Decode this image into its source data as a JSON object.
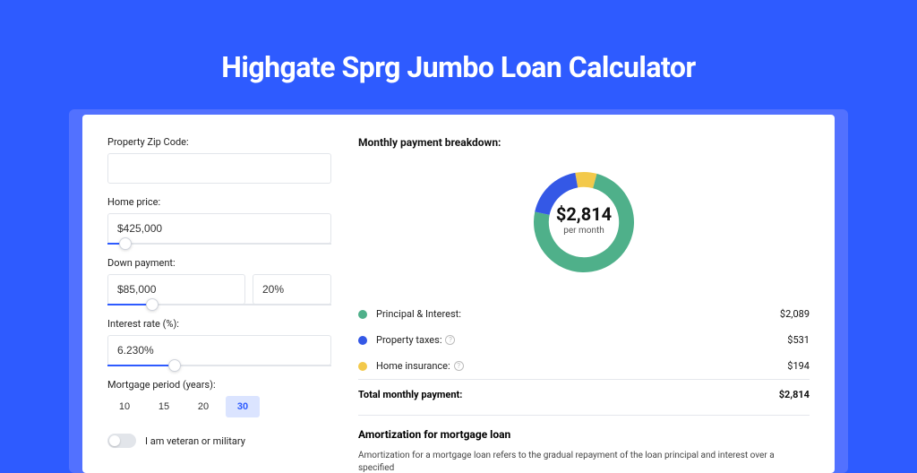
{
  "title": "Highgate Sprg Jumbo Loan Calculator",
  "colors": {
    "page_bg": "#2e5bff",
    "card_bg": "#ffffff",
    "pi": "#4fb08a",
    "tax": "#3458e6",
    "ins": "#f3c94b",
    "border": "#e2e5ea"
  },
  "form": {
    "zip_label": "Property Zip Code:",
    "zip_value": "",
    "home_price_label": "Home price:",
    "home_price_value": "$425,000",
    "home_price_slider_pct": 8,
    "down_label": "Down payment:",
    "down_value": "$85,000",
    "down_pct_value": "20%",
    "down_slider_pct": 20,
    "rate_label": "Interest rate (%):",
    "rate_value": "6.230%",
    "rate_slider_pct": 30,
    "period_label": "Mortgage period (years):",
    "periods": [
      "10",
      "15",
      "20",
      "30"
    ],
    "period_active_index": 3,
    "veteran_label": "I am veteran or military"
  },
  "breakdown": {
    "title": "Monthly payment breakdown:",
    "center_amount": "$2,814",
    "center_sub": "per month",
    "donut": {
      "pi_deg": 267,
      "tax_deg": 68,
      "ins_deg": 25,
      "thickness": 0.3
    },
    "rows": [
      {
        "label": "Principal & Interest:",
        "value": "$2,089",
        "color": "#4fb08a",
        "info": false
      },
      {
        "label": "Property taxes:",
        "value": "$531",
        "color": "#3458e6",
        "info": true
      },
      {
        "label": "Home insurance:",
        "value": "$194",
        "color": "#f3c94b",
        "info": true
      }
    ],
    "total_label": "Total monthly payment:",
    "total_value": "$2,814"
  },
  "amortization": {
    "title": "Amortization for mortgage loan",
    "text": "Amortization for a mortgage loan refers to the gradual repayment of the loan principal and interest over a specified"
  }
}
